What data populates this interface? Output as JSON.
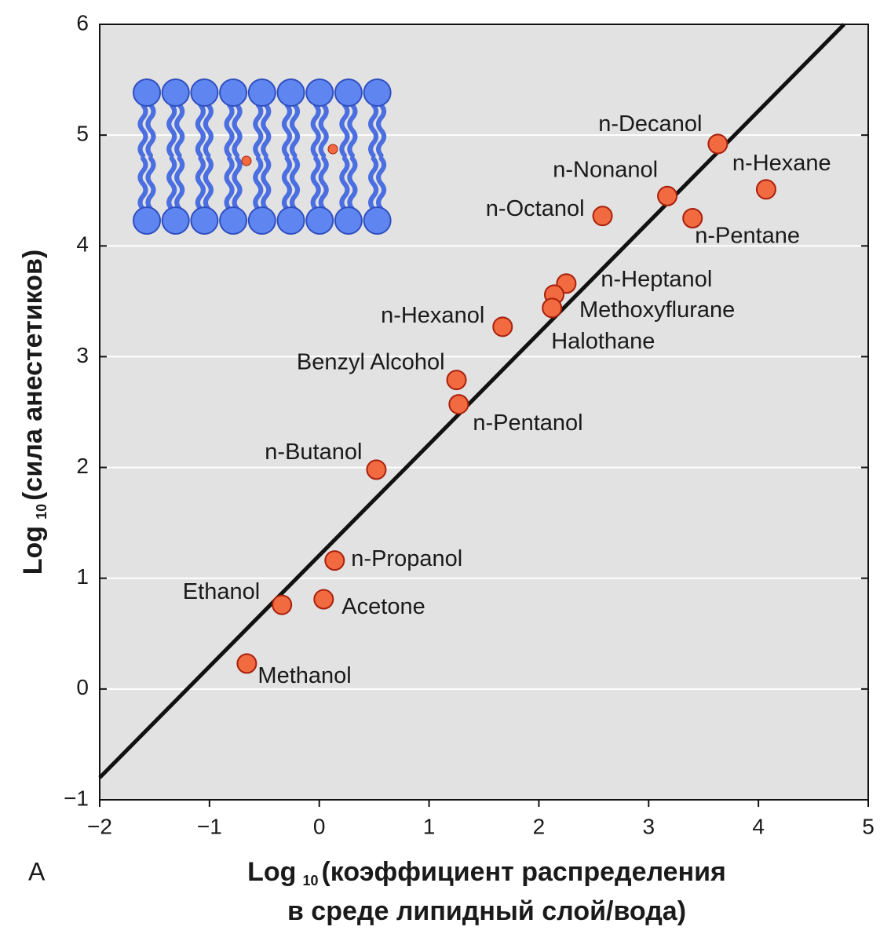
{
  "chart_data": {
    "type": "scatter",
    "panel_label": "A",
    "ylabel": {
      "main": "Log",
      "sub": "10",
      "rest": "(сила анестетиков)"
    },
    "xlabel": {
      "main": "Log",
      "sub": "10",
      "rest": "(коэффициент распределения",
      "line2": "в среде липидный слой/вода)"
    },
    "xlim": [
      -2,
      5
    ],
    "ylim": [
      -1,
      6
    ],
    "xticks": [
      {
        "value": -2,
        "label": "−2"
      },
      {
        "value": -1,
        "label": "−1"
      },
      0,
      1,
      2,
      3,
      4,
      5
    ],
    "yticks": [
      {
        "value": -1,
        "label": "−1"
      },
      0,
      1,
      2,
      3,
      4,
      5,
      6
    ],
    "grid": true,
    "color": "#f26a3f",
    "edge_color": "#a8200c",
    "point_labels": [
      "n-Decanol",
      "n-Hexane",
      "n-Nonanol",
      "n-Pentane",
      "n-Octanol",
      "n-Heptanol",
      "Methoxyflurane",
      "Halothane",
      "n-Hexanol",
      "Benzyl Alcohol",
      "n-Pentanol",
      "n-Butanol",
      "n-Propanol",
      "Acetone",
      "Ethanol",
      "Methanol"
    ],
    "x": [
      3.63,
      4.07,
      3.17,
      3.4,
      2.58,
      2.25,
      2.14,
      2.12,
      1.67,
      1.25,
      1.27,
      0.52,
      0.14,
      0.04,
      -0.34,
      -0.66
    ],
    "values": [
      4.92,
      4.51,
      4.45,
      4.25,
      4.27,
      3.66,
      3.56,
      3.44,
      3.27,
      2.79,
      2.57,
      1.98,
      1.16,
      0.81,
      0.76,
      0.23
    ],
    "fit_line": {
      "x": [
        -2,
        4.78
      ],
      "y": [
        -0.8,
        6
      ]
    }
  }
}
